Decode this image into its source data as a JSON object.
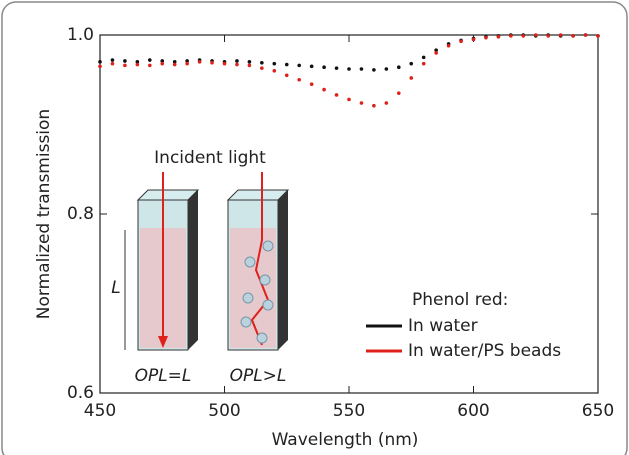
{
  "chart_data": {
    "type": "scatter",
    "x_label": "Wavelength (nm)",
    "y_label": "Normalized transmission",
    "xlim": [
      450,
      650
    ],
    "xticks": [
      450,
      500,
      550,
      600,
      650
    ],
    "ylim": [
      0.6,
      1.0
    ],
    "yticks": [
      0.6,
      0.8,
      {
        "value": 1.0,
        "label": "1.0"
      }
    ],
    "legend_title": "Phenol red:",
    "legend_position": "lower right",
    "x": [
      450,
      455,
      460,
      465,
      470,
      475,
      480,
      485,
      490,
      495,
      500,
      505,
      510,
      515,
      520,
      525,
      530,
      535,
      540,
      545,
      550,
      555,
      560,
      565,
      570,
      575,
      580,
      585,
      590,
      595,
      600,
      605,
      610,
      615,
      620,
      625,
      630,
      635,
      640,
      645,
      650
    ],
    "series": [
      {
        "name": "In water",
        "color": "#111111",
        "values": [
          0.97,
          0.972,
          0.971,
          0.97,
          0.972,
          0.971,
          0.97,
          0.971,
          0.972,
          0.971,
          0.97,
          0.971,
          0.97,
          0.969,
          0.968,
          0.967,
          0.966,
          0.965,
          0.964,
          0.963,
          0.962,
          0.962,
          0.961,
          0.962,
          0.964,
          0.968,
          0.975,
          0.983,
          0.99,
          0.994,
          0.996,
          0.998,
          0.999,
          1.0,
          1.0,
          0.999,
          1.0,
          0.999,
          0.999,
          1.0,
          0.999
        ]
      },
      {
        "name": "In water/PS beads",
        "color": "#e0201a",
        "values": [
          0.965,
          0.968,
          0.966,
          0.967,
          0.966,
          0.968,
          0.967,
          0.968,
          0.97,
          0.969,
          0.968,
          0.967,
          0.966,
          0.963,
          0.96,
          0.955,
          0.95,
          0.945,
          0.939,
          0.933,
          0.928,
          0.924,
          0.921,
          0.924,
          0.935,
          0.952,
          0.968,
          0.98,
          0.988,
          0.993,
          0.995,
          0.997,
          0.998,
          0.999,
          0.999,
          1.0,
          0.999,
          1.0,
          0.999,
          1.0,
          0.999
        ]
      }
    ],
    "annotations": [
      "Incident light",
      "L",
      "OPL=L",
      "OPL>L"
    ]
  }
}
